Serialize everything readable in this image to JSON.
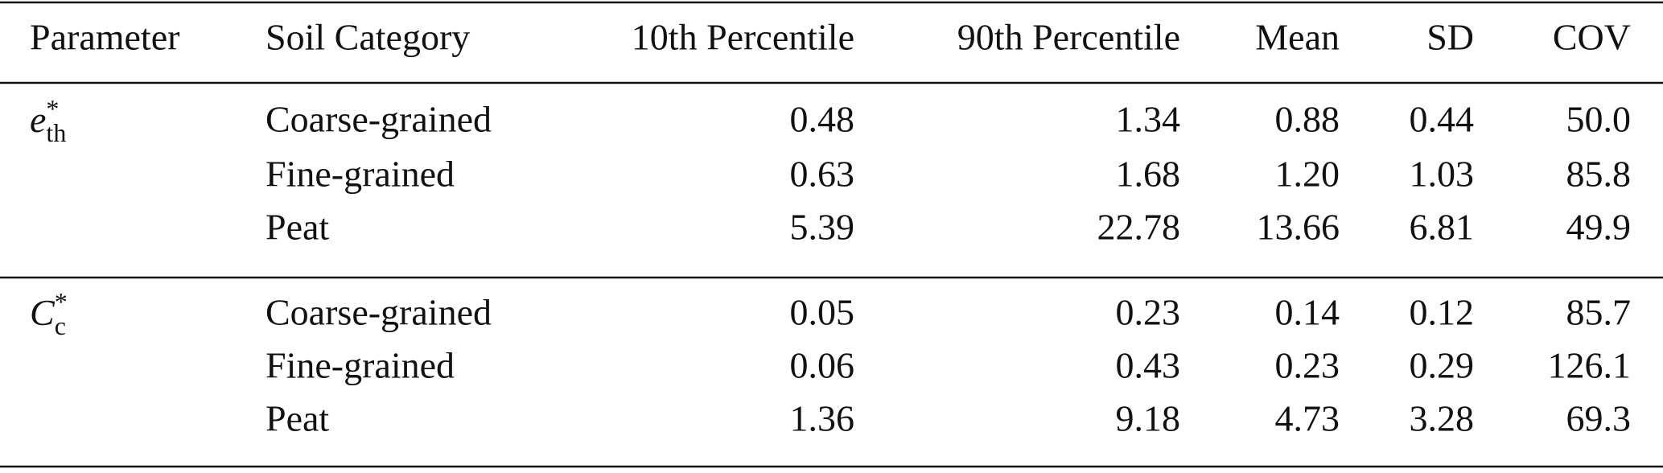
{
  "table": {
    "headers": [
      "Parameter",
      "Soil Category",
      "10th Percentile",
      "90th Percentile",
      "Mean",
      "SD",
      "COV"
    ],
    "groups": [
      {
        "parameter": {
          "symbol": "e",
          "superscript": "*",
          "subscript": "th"
        },
        "rows": [
          [
            "Coarse-grained",
            "0.48",
            "1.34",
            "0.88",
            "0.44",
            "50.0"
          ],
          [
            "Fine-grained",
            "0.63",
            "1.68",
            "1.20",
            "1.03",
            "85.8"
          ],
          [
            "Peat",
            "5.39",
            "22.78",
            "13.66",
            "6.81",
            "49.9"
          ]
        ]
      },
      {
        "parameter": {
          "symbol": "C",
          "superscript": "*",
          "subscript": "c"
        },
        "rows": [
          [
            "Coarse-grained",
            "0.05",
            "0.23",
            "0.14",
            "0.12",
            "85.7"
          ],
          [
            "Fine-grained",
            "0.06",
            "0.43",
            "0.23",
            "0.29",
            "126.1"
          ],
          [
            "Peat",
            "1.36",
            "9.18",
            "4.73",
            "3.28",
            "69.3"
          ]
        ]
      }
    ]
  }
}
